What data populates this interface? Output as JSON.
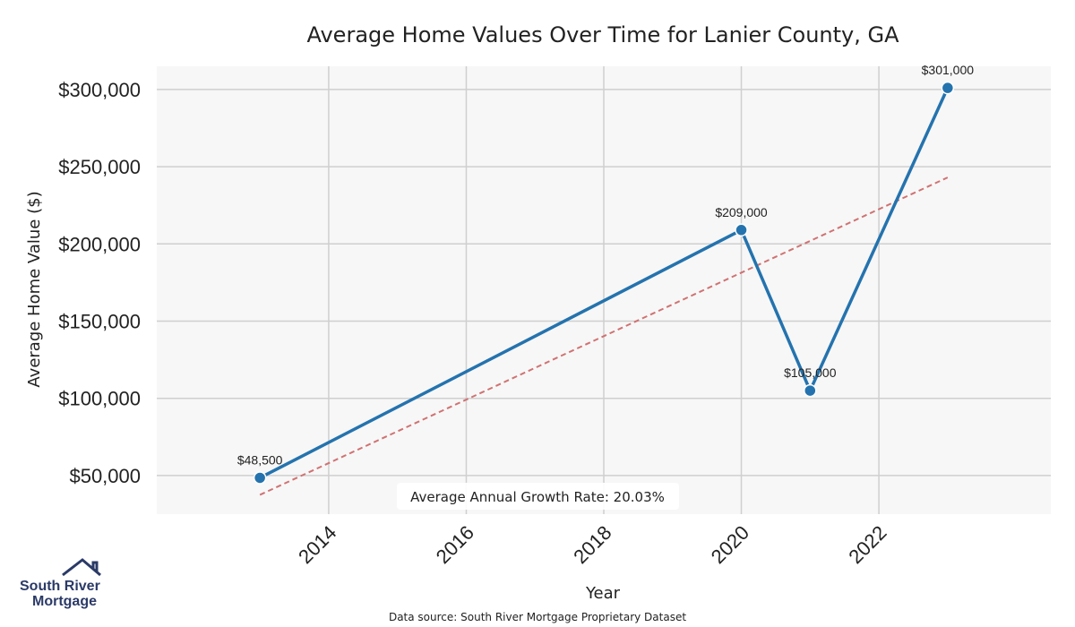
{
  "chart_data": {
    "type": "line",
    "title": "Average Home Values Over Time for Lanier County, GA",
    "xlabel": "Year",
    "ylabel": "Average Home Value ($)",
    "x": [
      2013,
      2020,
      2021,
      2023
    ],
    "values": [
      48500,
      209000,
      105000,
      301000
    ],
    "data_labels": [
      "$48,500",
      "$209,000",
      "$105,000",
      "$301,000"
    ],
    "xlim": [
      2011.5,
      2024.5
    ],
    "ylim": [
      25000,
      315000
    ],
    "xticks": [
      2014,
      2016,
      2018,
      2020,
      2022
    ],
    "xtick_labels": [
      "2014",
      "2016",
      "2018",
      "2020",
      "2022"
    ],
    "yticks": [
      50000,
      100000,
      150000,
      200000,
      250000,
      300000
    ],
    "ytick_labels": [
      "$50,000",
      "$100,000",
      "$150,000",
      "$200,000",
      "$250,000",
      "$300,000"
    ],
    "trendline": {
      "x": [
        2013,
        2023
      ],
      "y": [
        37500,
        243000
      ]
    },
    "grid": true,
    "annotation": "Average Annual Growth Rate: 20.03%",
    "source": "Data source: South River Mortgage Proprietary Dataset",
    "colors": {
      "line": "#2473ae",
      "trend": "#d07272",
      "plot_bg": "#f7f7f7",
      "grid": "#cfcfcf"
    }
  },
  "logo": {
    "line1": "South River",
    "line2": "Mortgage",
    "color": "#2b3a67"
  }
}
